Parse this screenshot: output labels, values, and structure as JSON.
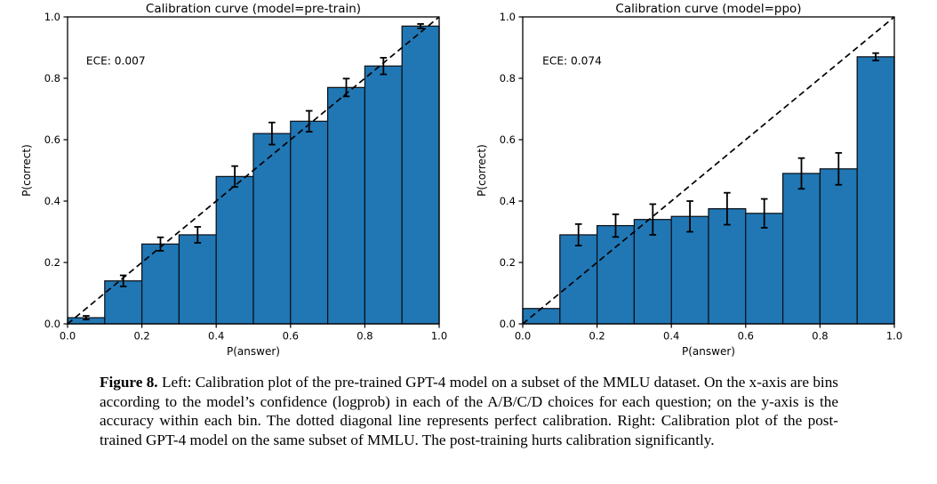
{
  "page": {
    "background": "#ffffff",
    "text_color": "#000000"
  },
  "caption": {
    "label": "Figure 8.",
    "text": " Left: Calibration plot of the pre-trained GPT-4 model on a subset of the MMLU dataset. On the x-axis are bins according to the model’s confidence (logprob) in each of the A/B/C/D choices for each question; on the y-axis is the accuracy within each bin. The dotted diagonal line represents perfect calibration. Right: Calibration plot of the post-trained GPT-4 model on the same subset of MMLU. The post-training hurts calibration significantly."
  },
  "chart_data": [
    {
      "type": "bar",
      "title": "Calibration curve (model=pre-train)",
      "xlabel": "P(answer)",
      "ylabel": "P(correct)",
      "annotation": "ECE: 0.007",
      "annotation_pos": {
        "x": 0.05,
        "y": 0.845
      },
      "xlim": [
        0,
        1
      ],
      "ylim": [
        0,
        1
      ],
      "grid": false,
      "legend": "none",
      "bin_edges": [
        0.0,
        0.1,
        0.2,
        0.3,
        0.4,
        0.5,
        0.6,
        0.7,
        0.8,
        0.9,
        1.0
      ],
      "values": [
        0.02,
        0.14,
        0.26,
        0.29,
        0.48,
        0.62,
        0.66,
        0.77,
        0.84,
        0.97
      ],
      "errors": [
        0.006,
        0.018,
        0.022,
        0.026,
        0.034,
        0.036,
        0.034,
        0.029,
        0.027,
        0.007
      ],
      "xticks": [
        "0.0",
        "0.2",
        "0.4",
        "0.6",
        "0.8",
        "1.0"
      ],
      "yticks": [
        "0.0",
        "0.2",
        "0.4",
        "0.6",
        "0.8",
        "1.0"
      ],
      "diagonal_line": {
        "style": "dashed",
        "from": [
          0,
          0
        ],
        "to": [
          1,
          1
        ],
        "color": "#000000"
      },
      "bar_color": "#2077b4",
      "bar_edge_color": "#0d1117",
      "errorbar_color": "#000000"
    },
    {
      "type": "bar",
      "title": "Calibration curve (model=ppo)",
      "xlabel": "P(answer)",
      "ylabel": "P(correct)",
      "annotation": "ECE: 0.074",
      "annotation_pos": {
        "x": 0.053,
        "y": 0.845
      },
      "xlim": [
        0,
        1
      ],
      "ylim": [
        0,
        1
      ],
      "grid": false,
      "legend": "none",
      "bin_edges": [
        0.0,
        0.1,
        0.2,
        0.3,
        0.4,
        0.5,
        0.6,
        0.7,
        0.8,
        0.9,
        1.0
      ],
      "values": [
        0.05,
        0.29,
        0.32,
        0.34,
        0.35,
        0.375,
        0.36,
        0.49,
        0.505,
        0.87
      ],
      "errors": [
        0,
        0.035,
        0.037,
        0.05,
        0.05,
        0.052,
        0.047,
        0.05,
        0.052,
        0.012
      ],
      "xticks": [
        "0.0",
        "0.2",
        "0.4",
        "0.6",
        "0.8",
        "1.0"
      ],
      "yticks": [
        "0.0",
        "0.2",
        "0.4",
        "0.6",
        "0.8",
        "1.0"
      ],
      "diagonal_line": {
        "style": "dashed",
        "from": [
          0,
          0
        ],
        "to": [
          1,
          1
        ],
        "color": "#000000"
      },
      "bar_color": "#2077b4",
      "bar_edge_color": "#0d1117",
      "errorbar_color": "#000000"
    }
  ]
}
